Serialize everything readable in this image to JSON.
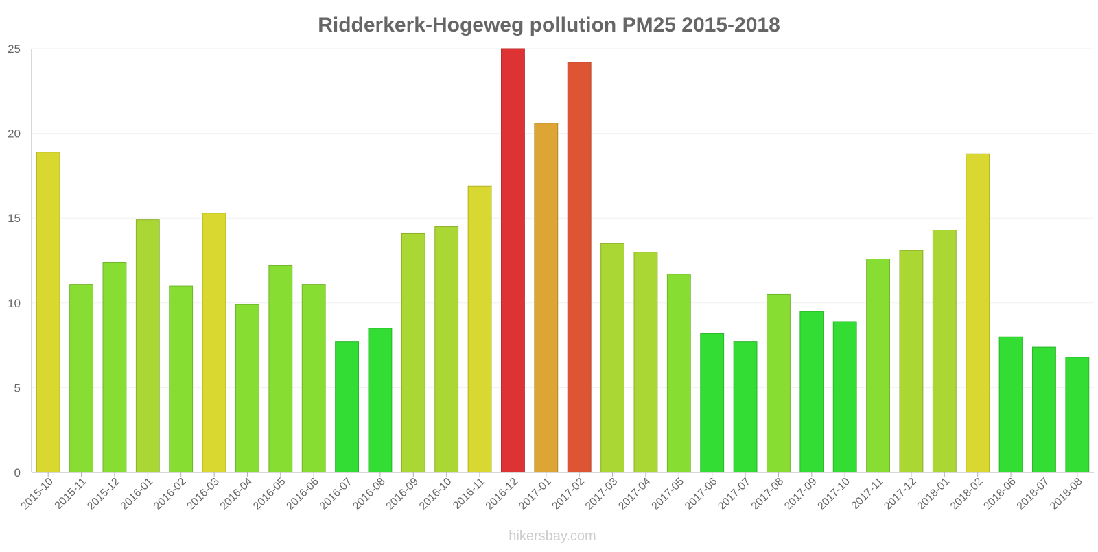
{
  "chart_data": {
    "type": "bar",
    "title": "Ridderkerk-Hogeweg pollution PM25 2015-2018",
    "xlabel": "",
    "ylabel": "",
    "ylim": [
      0,
      25
    ],
    "yticks": [
      0,
      5,
      10,
      15,
      20,
      25
    ],
    "grid": true,
    "categories": [
      "2015-10",
      "2015-11",
      "2015-12",
      "2016-01",
      "2016-02",
      "2016-03",
      "2016-04",
      "2016-05",
      "2016-06",
      "2016-07",
      "2016-08",
      "2016-09",
      "2016-10",
      "2016-11",
      "2016-12",
      "2017-01",
      "2017-02",
      "2017-03",
      "2017-04",
      "2017-05",
      "2017-06",
      "2017-07",
      "2017-08",
      "2017-09",
      "2017-10",
      "2017-11",
      "2017-12",
      "2018-01",
      "2018-02",
      "2018-06",
      "2018-07",
      "2018-08"
    ],
    "values": [
      18.9,
      11.1,
      12.4,
      14.9,
      11.0,
      15.3,
      9.9,
      12.2,
      11.1,
      7.7,
      8.5,
      14.1,
      14.5,
      16.9,
      25.0,
      20.6,
      24.2,
      13.5,
      13.0,
      11.7,
      8.2,
      7.7,
      10.5,
      9.5,
      8.9,
      12.6,
      13.1,
      14.3,
      18.8,
      8.0,
      7.4,
      6.8
    ],
    "colors": {
      "low": "#33dd33",
      "mid_low": "#88dd33",
      "mid": "#aad733",
      "mid_high": "#d8d830",
      "orange": "#dda533",
      "red_orange": "#dd5533",
      "red": "#dd3333"
    }
  },
  "watermark": "hikersbay.com"
}
